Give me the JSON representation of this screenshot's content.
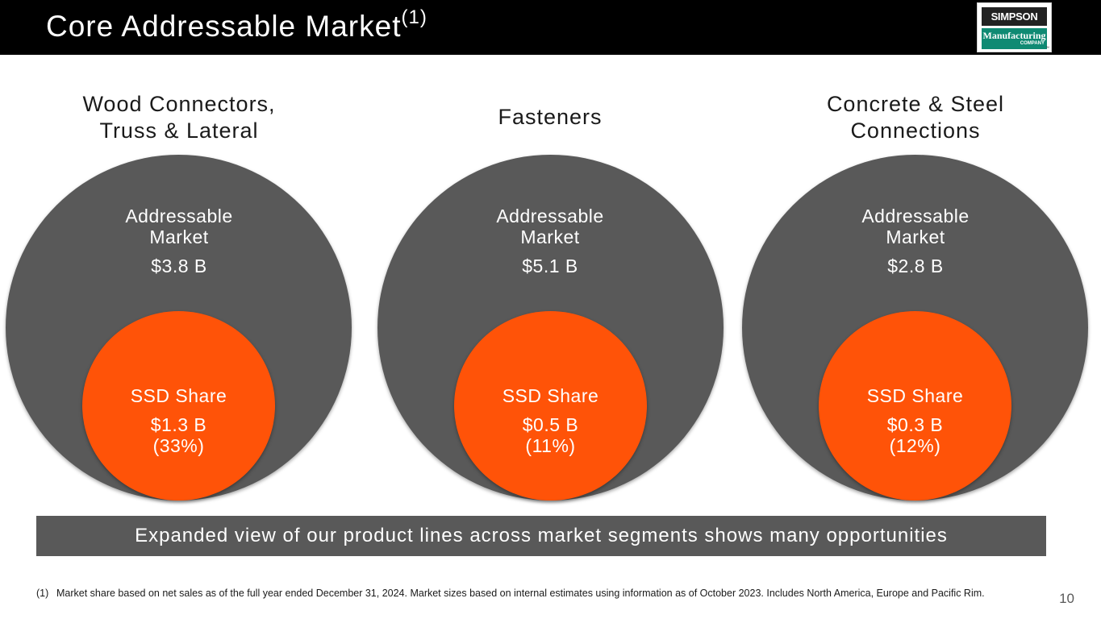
{
  "header": {
    "title": "Core Addressable Market",
    "title_superscript": "(1)",
    "logo": {
      "line1": "SIMPSON",
      "line2": "Manufacturing",
      "line3": "COMPANY",
      "tm": "™"
    }
  },
  "segments": [
    {
      "title_line1": "Wood Connectors,",
      "title_line2": "Truss & Lateral",
      "market_label_line1": "Addressable",
      "market_label_line2": "Market",
      "market_value": "$3.8 B",
      "share_label": "SSD Share",
      "share_value": "$1.3 B",
      "share_pct": "(33%)"
    },
    {
      "title_line1": "",
      "title_line2": "Fasteners",
      "market_label_line1": "Addressable",
      "market_label_line2": "Market",
      "market_value": "$5.1 B",
      "share_label": "SSD Share",
      "share_value": "$0.5 B",
      "share_pct": "(11%)"
    },
    {
      "title_line1": "Concrete & Steel",
      "title_line2": "Connections",
      "market_label_line1": "Addressable",
      "market_label_line2": "Market",
      "market_value": "$2.8 B",
      "share_label": "SSD Share",
      "share_value": "$0.3 B",
      "share_pct": "(12%)"
    }
  ],
  "banner": "Expanded view of our product lines across market segments shows many opportunities",
  "footnote": {
    "mark": "(1)",
    "text": "Market share based on net sales as of the full year ended December 31, 2024. Market sizes based on internal estimates using information as of October 2023. Includes North America, Europe and Pacific Rim."
  },
  "page_number": "10",
  "colors": {
    "header_bg": "#000000",
    "market_circle": "#595959",
    "share_circle": "#ff5308",
    "logo_green": "#0f8a73"
  }
}
